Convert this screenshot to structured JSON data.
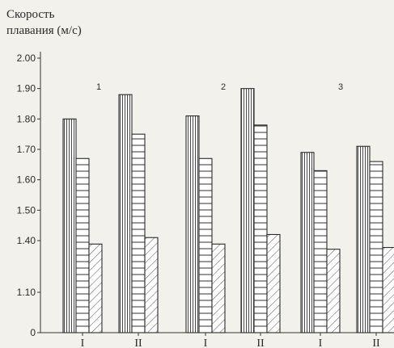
{
  "chart_data": {
    "type": "bar",
    "ylabel": [
      "Скорость",
      "плавания (м/с)"
    ],
    "y_ticks": [
      "0",
      "1.10",
      "1.40",
      "1.50",
      "1.60",
      "1.70",
      "1.80",
      "1.90",
      "2.00"
    ],
    "y_scale": "broken",
    "ylim": [
      0,
      2.0
    ],
    "grid": false,
    "groups": [
      "1",
      "2",
      "3"
    ],
    "categories": [
      "I",
      "II",
      "I",
      "II",
      "I",
      "II"
    ],
    "series": [
      {
        "pattern": "vertical-lines",
        "values": [
          1.8,
          1.88,
          1.81,
          1.9,
          1.69,
          1.71
        ]
      },
      {
        "pattern": "horizontal-lines",
        "values": [
          1.67,
          1.75,
          1.67,
          1.78,
          1.63,
          1.66
        ]
      },
      {
        "pattern": "diagonal-hatch",
        "values": [
          1.38,
          1.41,
          1.38,
          1.42,
          1.35,
          1.36
        ]
      }
    ]
  }
}
